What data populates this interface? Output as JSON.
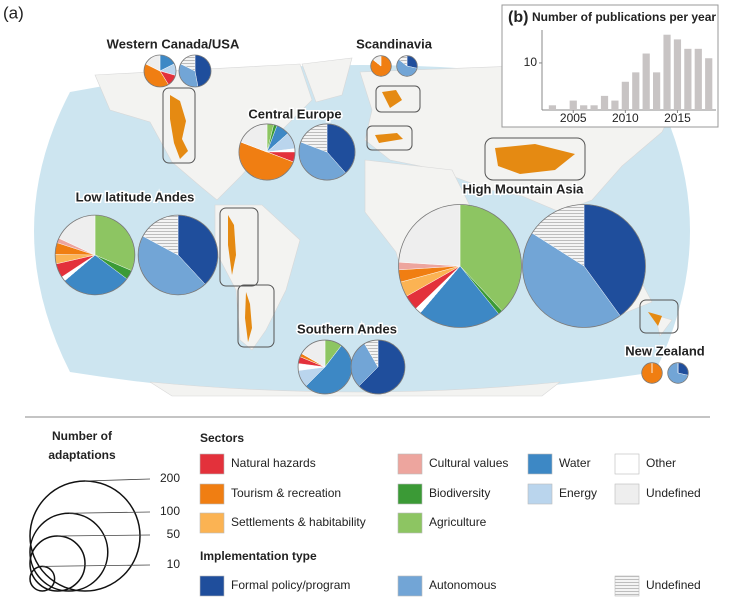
{
  "chart_data": [
    {
      "type": "pie",
      "panel_label": "(a)",
      "sector_names": [
        "Natural hazards",
        "Tourism & recreation",
        "Settlements & habitability",
        "Cultural values",
        "Biodiversity",
        "Agriculture",
        "Water",
        "Energy",
        "Other",
        "Undefined"
      ],
      "sector_colors": [
        "#e3313b",
        "#f07e12",
        "#fbb353",
        "#eda59e",
        "#3b9a36",
        "#8dc562",
        "#3d88c5",
        "#bad5ed",
        "#ffffff",
        "#eeeeee"
      ],
      "implementation_names": [
        "Formal policy/program",
        "Autonomous",
        "Undefined"
      ],
      "implementation_colors": [
        "#1f4e9c",
        "#72a5d6",
        "#f4f4f4"
      ],
      "sectors_title": "Sectors",
      "implementation_title": "Implementation type",
      "size_title": [
        "Number of",
        "adaptations"
      ],
      "sizes": [
        200,
        100,
        50,
        10
      ],
      "regions": [
        {
          "name": "Western Canada/USA",
          "sectors": [
            2,
            7,
            0,
            0,
            0,
            0,
            3,
            2,
            0,
            3
          ],
          "implementation": [
            8,
            6,
            3
          ]
        },
        {
          "name": "Scandinavia",
          "sectors": [
            0,
            6,
            0,
            0,
            0,
            0,
            0,
            0,
            0,
            1
          ],
          "implementation": [
            2,
            4,
            1
          ]
        },
        {
          "name": "Central Europe",
          "sectors": [
            3,
            26,
            0,
            0,
            1,
            2,
            4,
            5,
            1,
            10
          ],
          "implementation": [
            20,
            22,
            10
          ]
        },
        {
          "name": "Low latitude Andes",
          "sectors": [
            6,
            5,
            4,
            2,
            4,
            33,
            30,
            0,
            2,
            19
          ],
          "implementation": [
            40,
            47,
            18
          ]
        },
        {
          "name": "High Mountain Asia",
          "sectors": [
            10,
            8,
            10,
            5,
            3,
            95,
            55,
            0,
            4,
            60
          ],
          "implementation": [
            100,
            110,
            40
          ]
        },
        {
          "name": "Southern Andes",
          "sectors": [
            2,
            1,
            0,
            0,
            0,
            5,
            25,
            5,
            2,
            8
          ],
          "implementation": [
            30,
            14,
            4
          ]
        },
        {
          "name": "New Zealand",
          "sectors": [
            0,
            7,
            0,
            0,
            0,
            0,
            0,
            0,
            0,
            0
          ],
          "implementation": [
            2,
            5,
            0
          ]
        }
      ]
    },
    {
      "type": "bar",
      "panel_label": "(b)",
      "title": "Number of publications per year",
      "color": "#c8c4c4",
      "x": [
        2003,
        2004,
        2005,
        2006,
        2007,
        2008,
        2009,
        2010,
        2011,
        2012,
        2013,
        2014,
        2015,
        2016,
        2017,
        2018
      ],
      "values": [
        1,
        0,
        2,
        1,
        1,
        3,
        2,
        6,
        8,
        12,
        8,
        16,
        15,
        13,
        13,
        11
      ],
      "xlim": [
        2002,
        2018.7
      ],
      "xticks": [
        2005,
        2010,
        2015
      ],
      "ylim": [
        0,
        17
      ],
      "yticks": [
        10
      ]
    }
  ]
}
